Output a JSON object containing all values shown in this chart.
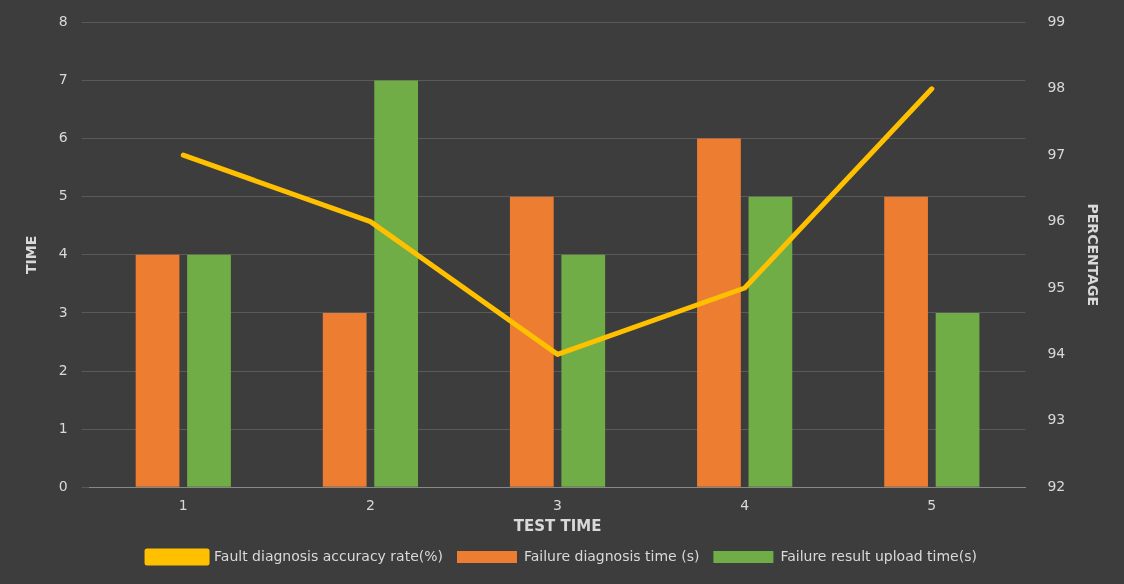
{
  "chart_data": {
    "type": "bar",
    "xlabel": "TEST TIME",
    "ylabel": "TIME",
    "y2label": "PERCENTAGE",
    "categories": [
      "1",
      "2",
      "3",
      "4",
      "5"
    ],
    "series": [
      {
        "name": "Failure diagnosis time (s)",
        "color": "#ed7d31",
        "values": [
          4,
          3,
          5,
          6,
          5
        ]
      },
      {
        "name": "Failure result upload time(s)",
        "color": "#70ad47",
        "values": [
          4,
          7,
          4,
          5,
          3
        ]
      },
      {
        "name": "Fault diagnosis accuracy rate(%)",
        "color": "#ffc000",
        "type": "line",
        "axis": "y2",
        "values": [
          97,
          96,
          94,
          95,
          98
        ]
      }
    ],
    "ylim": [
      0,
      8
    ],
    "yticks": [
      0,
      1,
      2,
      3,
      4,
      5,
      6,
      7,
      8
    ],
    "y2lim": [
      92,
      99
    ],
    "y2ticks": [
      92,
      93,
      94,
      95,
      96,
      97,
      98,
      99
    ],
    "grid": "y",
    "legend": "bottom",
    "marker": "none",
    "line_style": "solid"
  }
}
